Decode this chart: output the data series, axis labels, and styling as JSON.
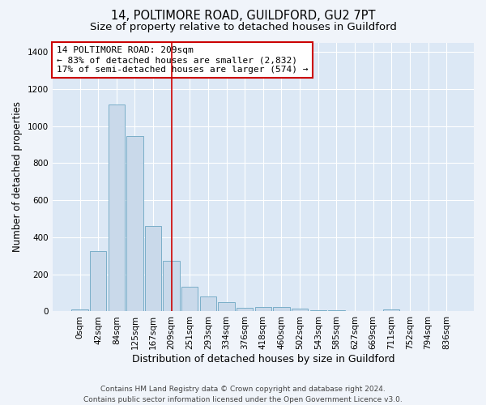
{
  "title": "14, POLTIMORE ROAD, GUILDFORD, GU2 7PT",
  "subtitle": "Size of property relative to detached houses in Guildford",
  "xlabel": "Distribution of detached houses by size in Guildford",
  "ylabel": "Number of detached properties",
  "footer_line1": "Contains HM Land Registry data © Crown copyright and database right 2024.",
  "footer_line2": "Contains public sector information licensed under the Open Government Licence v3.0.",
  "bar_labels": [
    "0sqm",
    "42sqm",
    "84sqm",
    "125sqm",
    "167sqm",
    "209sqm",
    "251sqm",
    "293sqm",
    "334sqm",
    "376sqm",
    "418sqm",
    "460sqm",
    "502sqm",
    "543sqm",
    "585sqm",
    "627sqm",
    "669sqm",
    "711sqm",
    "752sqm",
    "794sqm",
    "836sqm"
  ],
  "bar_values": [
    10,
    325,
    1115,
    945,
    460,
    275,
    135,
    80,
    50,
    20,
    22,
    22,
    15,
    8,
    5,
    0,
    0,
    12,
    0,
    0,
    0
  ],
  "bar_color": "#c9d9ea",
  "bar_edgecolor": "#7aaec8",
  "vline_x_index": 5,
  "vline_color": "#cc0000",
  "annotation_text": "14 POLTIMORE ROAD: 209sqm\n← 83% of detached houses are smaller (2,832)\n17% of semi-detached houses are larger (574) →",
  "annotation_box_facecolor": "white",
  "annotation_box_edgecolor": "#cc0000",
  "ylim": [
    0,
    1450
  ],
  "yticks": [
    0,
    200,
    400,
    600,
    800,
    1000,
    1200,
    1400
  ],
  "background_color": "#f0f4fa",
  "plot_background_color": "#dce8f5",
  "grid_color": "white",
  "title_fontsize": 10.5,
  "subtitle_fontsize": 9.5,
  "xlabel_fontsize": 9,
  "ylabel_fontsize": 8.5,
  "tick_fontsize": 7.5,
  "annotation_fontsize": 8,
  "footer_fontsize": 6.5
}
